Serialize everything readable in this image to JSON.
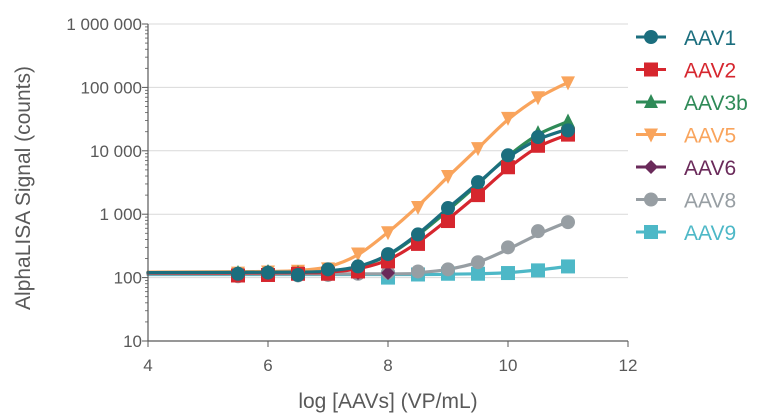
{
  "chart_data": {
    "type": "line",
    "title": "",
    "xlabel": "log [AAVs] (VP/mL)",
    "ylabel": "AlphaLISA Signal (counts)",
    "xlim": [
      4,
      12
    ],
    "ylim": [
      10,
      1000000
    ],
    "yscale": "log",
    "grid": "horizontal",
    "legend_position": "right",
    "x_ticks": [
      "4",
      "6",
      "8",
      "10",
      "12"
    ],
    "y_ticks": [
      "10",
      "100",
      "1 000",
      "10 000",
      "100 000",
      "1 000 000"
    ],
    "y_tick_values": [
      10,
      100,
      1000,
      10000,
      100000,
      1000000
    ],
    "series": [
      {
        "name": "AAV1",
        "color": "#1b6e7e",
        "marker": "circle",
        "x": [
          5.5,
          6,
          6.5,
          7,
          7.5,
          8,
          8.5,
          9,
          9.5,
          10,
          10.5,
          11
        ],
        "y": [
          115,
          120,
          110,
          135,
          150,
          235,
          480,
          1250,
          3200,
          8500,
          16500,
          21000
        ],
        "curve": [
          [
            4,
            120
          ],
          [
            6.5,
            122
          ],
          [
            7,
            128
          ],
          [
            7.5,
            150
          ],
          [
            8,
            230
          ],
          [
            8.5,
            490
          ],
          [
            9,
            1250
          ],
          [
            9.5,
            3100
          ],
          [
            10,
            7800
          ],
          [
            10.5,
            15000
          ],
          [
            11,
            22000
          ]
        ]
      },
      {
        "name": "AAV2",
        "color": "#d6262e",
        "marker": "square",
        "x": [
          5.5,
          6,
          6.5,
          7,
          7.5,
          8,
          8.5,
          9,
          9.5,
          10,
          10.5,
          11
        ],
        "y": [
          108,
          110,
          115,
          115,
          125,
          180,
          340,
          780,
          2000,
          5500,
          12000,
          18000
        ],
        "curve": [
          [
            4,
            118
          ],
          [
            6.5,
            119
          ],
          [
            7,
            122
          ],
          [
            7.5,
            138
          ],
          [
            8,
            190
          ],
          [
            8.5,
            360
          ],
          [
            9,
            830
          ],
          [
            9.5,
            2050
          ],
          [
            10,
            5300
          ],
          [
            10.5,
            11500
          ],
          [
            11,
            18000
          ]
        ]
      },
      {
        "name": "AAV3b",
        "color": "#2e8a57",
        "marker": "triangle-up",
        "x": [
          5.5,
          6,
          6.5,
          7,
          7.5,
          8,
          8.5,
          9,
          9.5,
          10,
          10.5,
          11
        ],
        "y": [
          118,
          122,
          118,
          125,
          140,
          220,
          450,
          1100,
          2900,
          8000,
          19000,
          29000
        ],
        "curve": [
          [
            4,
            120
          ],
          [
            6.5,
            121
          ],
          [
            7,
            126
          ],
          [
            7.5,
            148
          ],
          [
            8,
            225
          ],
          [
            8.5,
            470
          ],
          [
            9,
            1150
          ],
          [
            9.5,
            3000
          ],
          [
            10,
            8200
          ],
          [
            10.5,
            18000
          ],
          [
            11,
            29000
          ]
        ]
      },
      {
        "name": "AAV5",
        "color": "#f9a45c",
        "marker": "triangle-down",
        "x": [
          5.5,
          6,
          6.5,
          7,
          7.5,
          8,
          8.5,
          9,
          9.5,
          10,
          10.5,
          11
        ],
        "y": [
          120,
          125,
          128,
          140,
          240,
          520,
          1300,
          4000,
          11000,
          33000,
          70000,
          120000
        ],
        "curve": [
          [
            4,
            122
          ],
          [
            6,
            125
          ],
          [
            6.5,
            130
          ],
          [
            7,
            148
          ],
          [
            7.5,
            230
          ],
          [
            8,
            520
          ],
          [
            8.5,
            1350
          ],
          [
            9,
            3900
          ],
          [
            9.5,
            11000
          ],
          [
            10,
            31000
          ],
          [
            10.5,
            68000
          ],
          [
            11,
            120000
          ]
        ]
      },
      {
        "name": "AAV6",
        "color": "#6a2a5a",
        "marker": "diamond",
        "x": [
          5.5,
          6,
          6.5,
          7,
          7.5,
          8
        ],
        "y": [
          118,
          125,
          118,
          120,
          118,
          118
        ],
        "curve": []
      },
      {
        "name": "AAV8",
        "color": "#979ea3",
        "marker": "circle",
        "x": [
          5.5,
          6,
          6.5,
          7,
          7.5,
          8,
          8.5,
          9,
          9.5,
          10,
          10.5,
          11
        ],
        "y": [
          105,
          115,
          108,
          110,
          115,
          120,
          125,
          135,
          175,
          300,
          540,
          750
        ],
        "curve": [
          [
            4,
            115
          ],
          [
            8,
            115
          ],
          [
            8.5,
            120
          ],
          [
            9,
            135
          ],
          [
            9.5,
            175
          ],
          [
            10,
            280
          ],
          [
            10.5,
            480
          ],
          [
            11,
            760
          ]
        ]
      },
      {
        "name": "AAV9",
        "color": "#4db8c7",
        "marker": "square",
        "x": [
          8,
          8.5,
          9,
          9.5,
          10,
          10.5,
          11
        ],
        "y": [
          100,
          112,
          115,
          115,
          118,
          130,
          150
        ],
        "curve": [
          [
            4,
            112
          ],
          [
            8.5,
            112
          ],
          [
            9,
            113
          ],
          [
            9.5,
            115
          ],
          [
            10,
            120
          ],
          [
            10.5,
            132
          ],
          [
            11,
            150
          ]
        ]
      }
    ]
  }
}
